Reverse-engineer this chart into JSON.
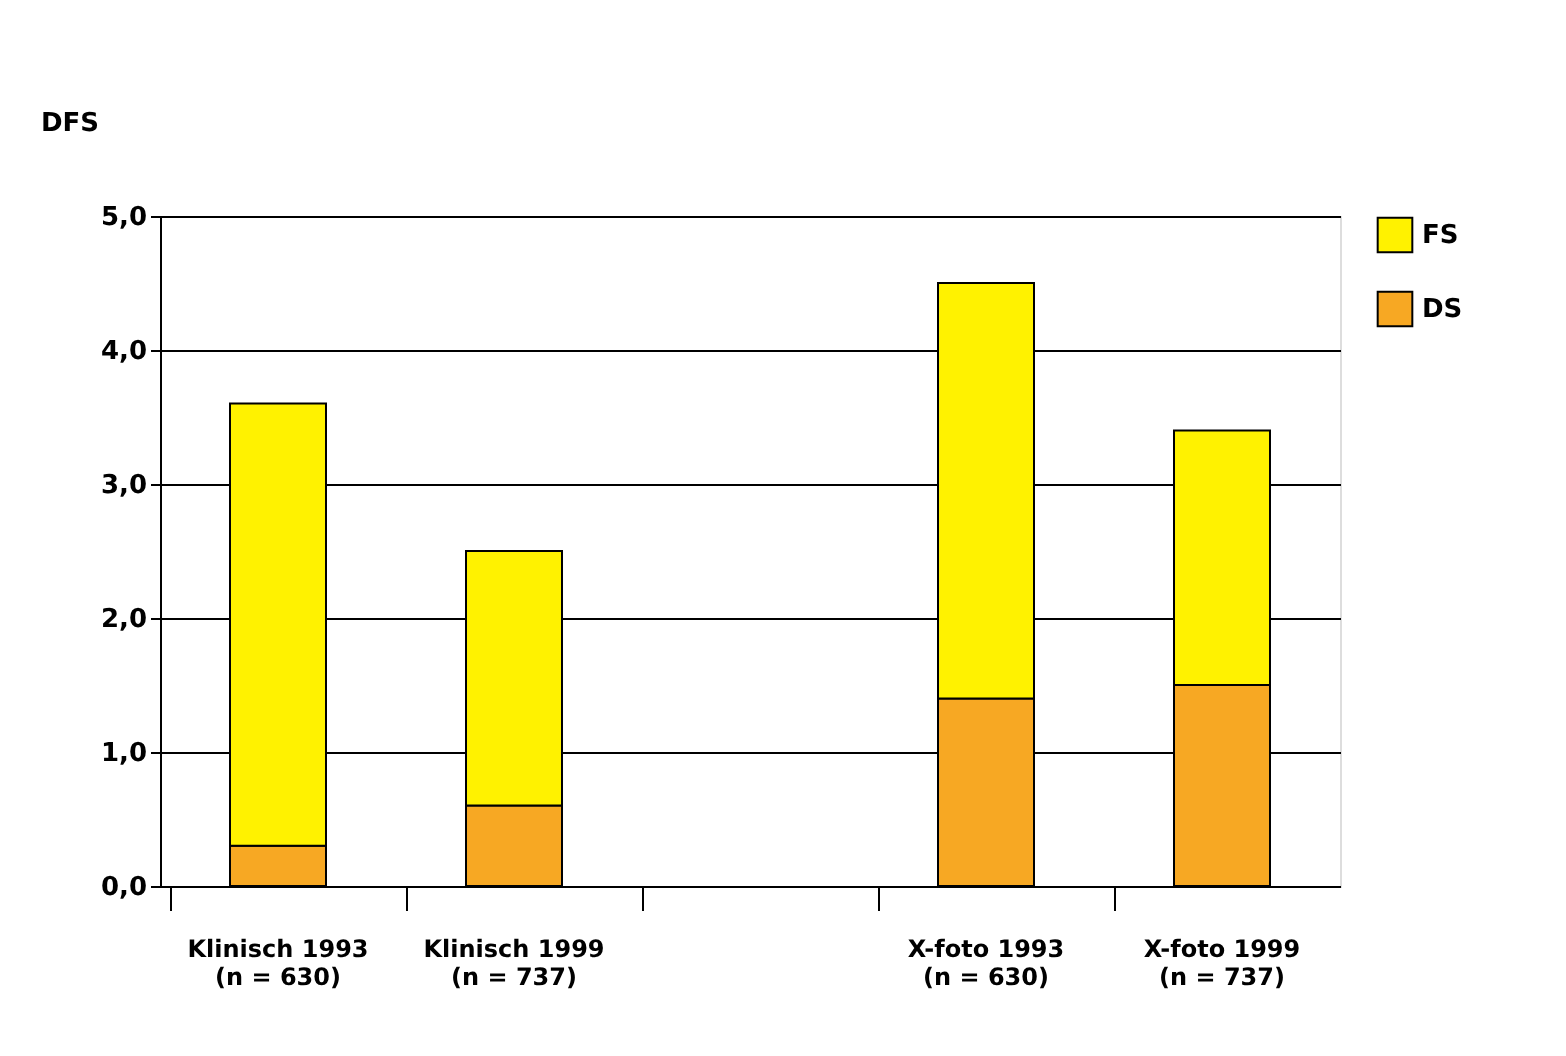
{
  "chart_data": {
    "type": "bar",
    "stacked": true,
    "ylabel": "DFS",
    "categories": [
      "Klinisch 1993\n(n = 630)",
      "Klinisch 1999\n(n = 737)",
      null,
      "X-foto 1993\n(n = 630)",
      "X-foto 1999\n(n = 737)"
    ],
    "series": [
      {
        "name": "DS",
        "color": "#f7a823",
        "values": [
          0.3,
          0.6,
          null,
          1.4,
          1.5
        ]
      },
      {
        "name": "FS",
        "color": "#fff200",
        "values": [
          3.3,
          1.9,
          null,
          3.1,
          1.9
        ]
      }
    ],
    "ylim": [
      0,
      5
    ],
    "yticks": [
      {
        "value": 0,
        "label": "0,0"
      },
      {
        "value": 1,
        "label": "1,0"
      },
      {
        "value": 2,
        "label": "2,0"
      },
      {
        "value": 3,
        "label": "3,0"
      },
      {
        "value": 4,
        "label": "4,0"
      },
      {
        "value": 5,
        "label": "5,0"
      }
    ],
    "grid": "y",
    "legend": "top right"
  }
}
